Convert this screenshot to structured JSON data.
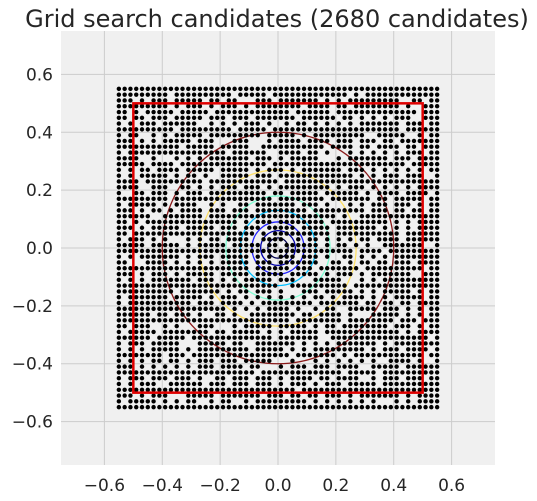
{
  "chart_data": {
    "type": "scatter",
    "title": "Grid search candidates (2680 candidates)",
    "xlabel": "",
    "ylabel": "",
    "xlim": [
      -0.75,
      0.75
    ],
    "ylim": [
      -0.75,
      0.75
    ],
    "grid": true,
    "x_ticks": [
      -0.6,
      -0.4,
      -0.2,
      0.0,
      0.2,
      0.4,
      0.6
    ],
    "y_ticks": [
      -0.6,
      -0.4,
      -0.2,
      0.0,
      0.2,
      0.4,
      0.6
    ],
    "x_tick_labels": [
      "−0.6",
      "−0.4",
      "−0.2",
      "0.0",
      "0.2",
      "0.4",
      "0.6"
    ],
    "y_tick_labels": [
      "−0.6",
      "−0.4",
      "−0.2",
      "0.0",
      "0.2",
      "0.4",
      "0.6"
    ],
    "candidates": {
      "count": 2680,
      "x_range": [
        -0.55,
        0.55
      ],
      "y_range": [
        -0.55,
        0.55
      ],
      "color": "#000000"
    },
    "bounds_rectangle": {
      "x": [
        -0.5,
        0.5
      ],
      "y": [
        -0.5,
        0.5
      ],
      "color": "#e00000"
    },
    "contours": [
      {
        "radius": 0.4,
        "color": "#8b1a1a"
      },
      {
        "radius": 0.27,
        "color": "#ffe066"
      },
      {
        "radius": 0.18,
        "color": "#7fffd4"
      },
      {
        "radius": 0.13,
        "color": "#00bfff"
      },
      {
        "radius": 0.09,
        "color": "#2222ff"
      },
      {
        "radius": 0.06,
        "color": "#0000aa"
      },
      {
        "radius": 0.035,
        "color": "#000050"
      }
    ]
  }
}
